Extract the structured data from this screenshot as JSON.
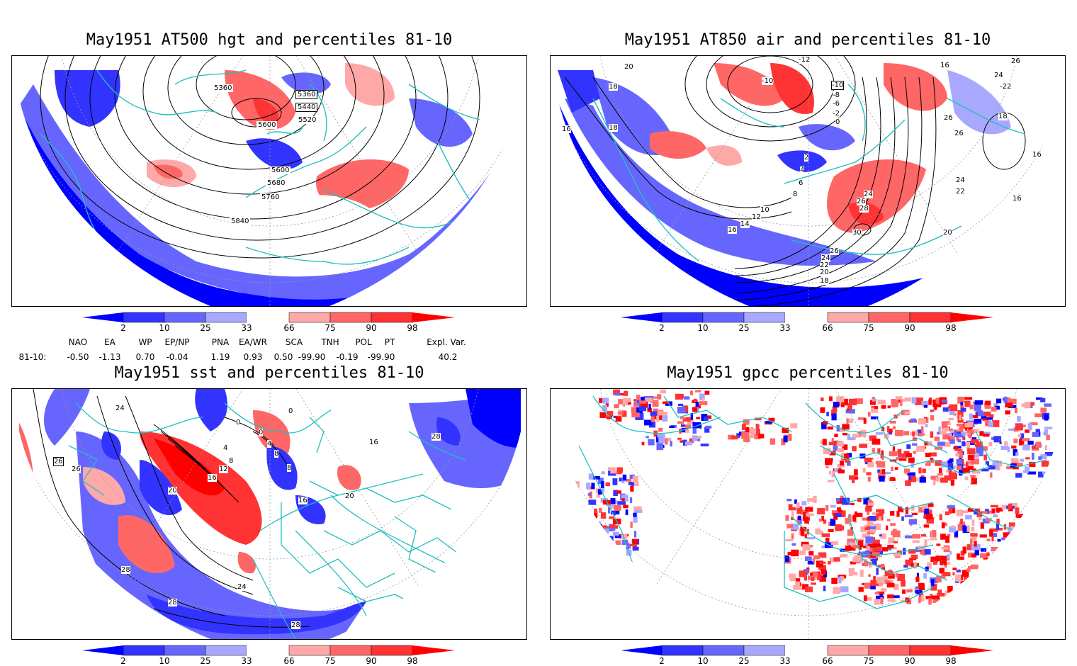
{
  "panels": [
    {
      "id": "hgt",
      "title": "May1951 AT500 hgt and percentiles 81-10",
      "contour_labels": [
        "5360",
        "5360",
        "5440",
        "5520",
        "5600",
        "5600",
        "5680",
        "5760",
        "5840"
      ]
    },
    {
      "id": "air",
      "title": "May1951 AT850 air and percentiles 81-10",
      "contour_labels": [
        "20",
        "18",
        "16",
        "18",
        "-10",
        "-10",
        "-8",
        "-6",
        "-2",
        "0",
        "-12",
        "16",
        "26",
        "24",
        "-22",
        "26",
        "26",
        "18",
        "16",
        "16",
        "2",
        "4",
        "6",
        "8",
        "10",
        "12",
        "14",
        "16",
        "24",
        "26",
        "28",
        "30",
        "26",
        "24",
        "22",
        "20",
        "18",
        "24",
        "22",
        "20"
      ]
    },
    {
      "id": "sst",
      "title": "May1951 sst and percentiles 81-10",
      "contour_labels": [
        "24",
        "26",
        "26",
        "20",
        "0",
        "0",
        "0",
        "4",
        "8",
        "12",
        "16",
        "4",
        "8",
        "8",
        "16",
        "20",
        "16",
        "28",
        "28",
        "24",
        "28",
        "28"
      ]
    },
    {
      "id": "gpcc",
      "title": "May1951 gpcc percentiles 81-10",
      "contour_labels": []
    }
  ],
  "colorbar": {
    "labels": [
      "2",
      "10",
      "25",
      "33",
      "66",
      "75",
      "90",
      "98"
    ],
    "colors": {
      "cold4": "#0000ff",
      "cold3": "#3333ff",
      "cold2": "#6666ff",
      "cold1": "#a8a8ff",
      "warm1": "#ffa8a8",
      "warm2": "#ff6666",
      "warm3": "#ff3333",
      "warm4": "#ff0000"
    }
  },
  "indices": {
    "headers": [
      "NAO",
      "EA",
      "WP",
      "EP/NP",
      "PNA",
      "EA/WR",
      "SCA",
      "TNH",
      "POL",
      "PT",
      "Expl. Var."
    ],
    "row_label": "81-10:",
    "values": [
      "-0.50",
      "-1.13",
      "0.70",
      "-0.04",
      "1.19",
      "0.93",
      "0.50",
      "-99.90",
      "-0.19",
      "-99.90",
      "40.2"
    ]
  },
  "style": {
    "coastline_color": "#20c0c0",
    "contour_color": "#000000"
  }
}
